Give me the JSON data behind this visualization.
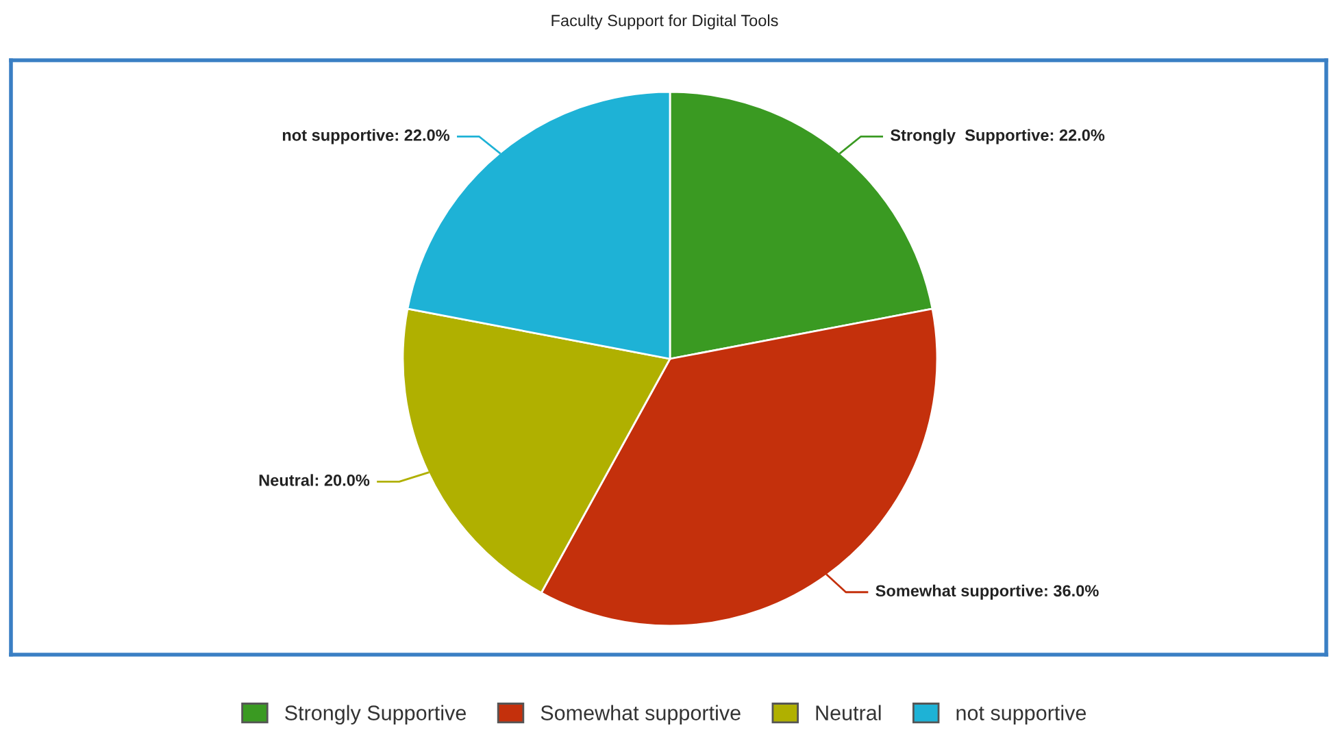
{
  "chart_data": {
    "type": "pie",
    "title": "Faculty Support for Digital Tools",
    "categories": [
      "Strongly Supportive",
      "Somewhat supportive",
      "Neutral",
      "not supportive"
    ],
    "values": [
      22.0,
      36.0,
      20.0,
      22.0
    ],
    "colors": [
      "#3a9a22",
      "#c4300c",
      "#b0b000",
      "#1eb2d6"
    ],
    "value_labels": [
      "Strongly  Supportive: 22.0%",
      "Somewhat supportive: 36.0%",
      "Neutral: 20.0%",
      "not supportive: 22.0%"
    ],
    "legend": "bottom"
  }
}
